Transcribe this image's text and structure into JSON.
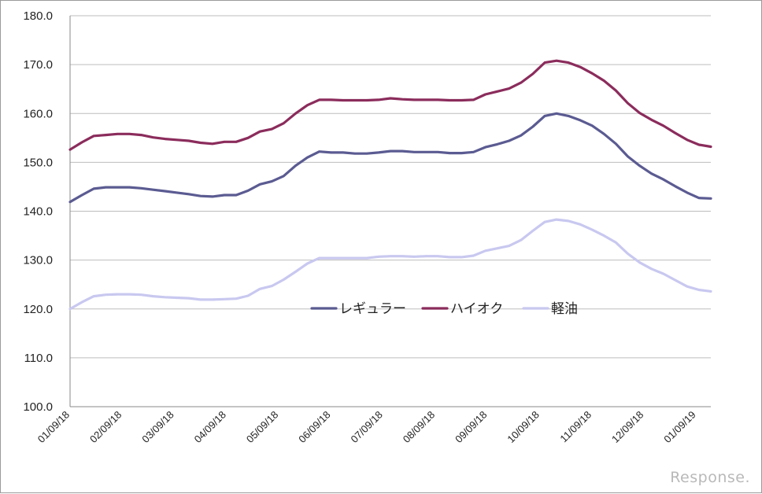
{
  "chart_data": {
    "type": "line",
    "title": "",
    "xlabel": "",
    "ylabel": "",
    "ylim": [
      100,
      180
    ],
    "yticks": [
      "100.0",
      "110.0",
      "120.0",
      "130.0",
      "140.0",
      "150.0",
      "160.0",
      "170.0",
      "180.0"
    ],
    "xticks": [
      "01/09/18",
      "02/09/18",
      "03/09/18",
      "04/09/18",
      "05/09/18",
      "06/09/18",
      "07/09/18",
      "08/09/18",
      "09/09/18",
      "10/09/18",
      "11/09/18",
      "12/09/18",
      "01/09/19"
    ],
    "grid": "horizontal",
    "legend_position": "center",
    "series": [
      {
        "name": "レギュラー",
        "color": "#5b5b92",
        "values": [
          141.9,
          143.3,
          144.6,
          144.9,
          144.9,
          144.9,
          144.7,
          144.4,
          144.1,
          143.8,
          143.5,
          143.1,
          143.0,
          143.3,
          143.3,
          144.2,
          145.5,
          146.1,
          147.2,
          149.3,
          151.0,
          152.2,
          152.0,
          152.0,
          151.8,
          151.8,
          152.0,
          152.3,
          152.3,
          152.1,
          152.1,
          152.1,
          151.9,
          151.9,
          152.1,
          153.1,
          153.7,
          154.4,
          155.5,
          157.3,
          159.5,
          160.0,
          159.5,
          158.6,
          157.5,
          155.8,
          153.8,
          151.2,
          149.3,
          147.7,
          146.5,
          145.1,
          143.8,
          142.7,
          142.6
        ]
      },
      {
        "name": "ハイオク",
        "color": "#8b2c5c",
        "values": [
          152.6,
          154.1,
          155.4,
          155.6,
          155.8,
          155.8,
          155.6,
          155.1,
          154.8,
          154.6,
          154.4,
          154.0,
          153.8,
          154.2,
          154.2,
          155.0,
          156.3,
          156.8,
          158.0,
          160.0,
          161.7,
          162.8,
          162.8,
          162.7,
          162.7,
          162.7,
          162.8,
          163.1,
          162.9,
          162.8,
          162.8,
          162.8,
          162.7,
          162.7,
          162.8,
          163.9,
          164.5,
          165.1,
          166.3,
          168.1,
          170.4,
          170.8,
          170.4,
          169.5,
          168.2,
          166.7,
          164.7,
          162.1,
          160.1,
          158.7,
          157.5,
          156.0,
          154.6,
          153.6,
          153.2
        ]
      },
      {
        "name": "軽油",
        "color": "#c8c8f0",
        "values": [
          120.0,
          121.4,
          122.6,
          122.9,
          123.0,
          123.0,
          122.9,
          122.6,
          122.4,
          122.3,
          122.2,
          121.9,
          121.9,
          122.0,
          122.1,
          122.7,
          124.1,
          124.7,
          126.0,
          127.6,
          129.3,
          130.4,
          130.4,
          130.4,
          130.4,
          130.4,
          130.7,
          130.8,
          130.8,
          130.7,
          130.8,
          130.8,
          130.6,
          130.6,
          130.9,
          131.9,
          132.4,
          132.9,
          134.1,
          136.0,
          137.8,
          138.3,
          138.0,
          137.3,
          136.2,
          135.0,
          133.6,
          131.3,
          129.5,
          128.2,
          127.2,
          125.9,
          124.6,
          123.9,
          123.6
        ]
      }
    ]
  },
  "watermark": "Response."
}
